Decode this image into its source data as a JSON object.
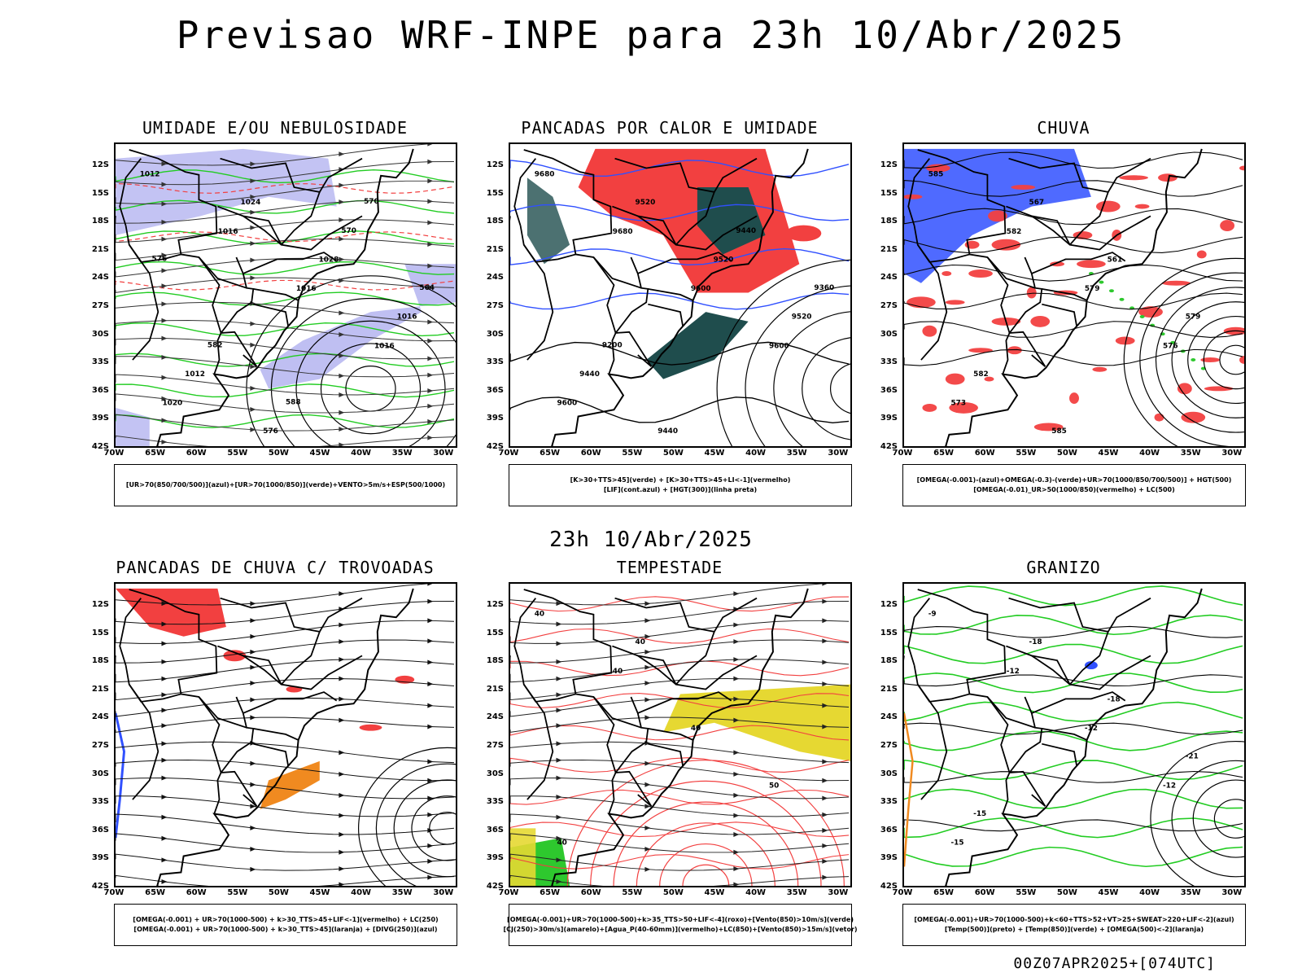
{
  "header": {
    "title": "Previsao WRF-INPE  para 23h 10/Abr/2025",
    "mid_title": "23h 10/Abr/2025",
    "footer_stamp": "00Z07APR2025+[074UTC]"
  },
  "axes": {
    "lat_labels": [
      "12S",
      "15S",
      "18S",
      "21S",
      "24S",
      "27S",
      "30S",
      "33S",
      "36S",
      "39S",
      "42S"
    ],
    "lon_labels": [
      "70W",
      "65W",
      "60W",
      "55W",
      "50W",
      "45W",
      "40W",
      "35W",
      "30W"
    ]
  },
  "panels": [
    {
      "id": "umidade",
      "title": "UMIDADE E/OU NEBULOSIDADE",
      "legend": [
        "[UR>70(850/700/500)](azul)+[UR>70(1000/850)](verde)+VENTO>5m/s+ESP(500/1000)"
      ],
      "labels": [
        "1012",
        "1016",
        "1016",
        "1016",
        "1020",
        "1024",
        "1028",
        "1016",
        "1012",
        "576",
        "570",
        "564",
        "582",
        "588",
        "570",
        "576"
      ]
    },
    {
      "id": "pancadas-calor",
      "title": "PANCADAS POR CALOR E UMIDADE",
      "legend": [
        "[K>30+TTS>45](verde) + [K>30+TTS>45+LI<-1](vermelho)",
        "[LIF](cont.azul) + [HGT(300)](linha preta)"
      ],
      "labels": [
        "9680",
        "9680",
        "9600",
        "9600",
        "9600",
        "9520",
        "9520",
        "9520",
        "9440",
        "9440",
        "9440",
        "9360",
        "9200"
      ]
    },
    {
      "id": "chuva",
      "title": "CHUVA",
      "legend": [
        "[OMEGA(-0.001)-(azul)+OMEGA(-0.3)-(verde)+UR>70(1000/850/700/500)] + HGT(500)",
        "[OMEGA(-0.01)_UR>50(1000/850)(vermelho) + LC(500)"
      ],
      "labels": [
        "585",
        "582",
        "579",
        "576",
        "573",
        "567",
        "561",
        "579",
        "582",
        "585"
      ]
    },
    {
      "id": "trovoadas",
      "title": "PANCADAS DE CHUVA C/ TROVOADAS",
      "legend": [
        "[OMEGA(-0.001) + UR>70(1000-500) + k>30_TTS>45+LIF<-1](vermelho) + LC(250)",
        "[OMEGA(-0.001) + UR>70(1000-500) + k>30_TTS>45](laranja) + [DIVG(250)](azul)"
      ],
      "labels": []
    },
    {
      "id": "tempestade",
      "title": "TEMPESTADE",
      "legend": [
        "[OMEGA(-0.001)+UR>70(1000-500)+k>35_TTS>50+LIF<-4](roxo)+[Vento(850)>10m/s](verde)",
        "[CJ(250)>30m/s](amarelo)+[Agua_P(40-60mm)](vermelho)+LC(850)+[Vento(850)>15m/s](vetor)"
      ],
      "labels": [
        "40",
        "40",
        "40",
        "50",
        "40",
        "40"
      ]
    },
    {
      "id": "granizo",
      "title": "GRANIZO",
      "legend": [
        "[OMEGA(-0.001)+UR>70(1000-500)+k<60+TTS>52+VT>25+SWEAT>220+LIF<-2](azul)",
        "[Temp(500)](preto) + [Temp(850)](verde) + [OMEGA(500)<-2](laranja)"
      ],
      "labels": [
        "-9",
        "-12",
        "-12",
        "-12",
        "-15",
        "-18",
        "-18",
        "-21",
        "-15"
      ]
    }
  ],
  "colors": {
    "blue_shade": "#b4b4f0",
    "green_contour": "#22cc22",
    "red_shade": "#f24040",
    "dark_teal": "#1f4d4d",
    "blue_contour": "#3050ff",
    "orange": "#f08a20",
    "yellow": "#e6d832",
    "green_shade": "#2ec82e",
    "coastline": "#000000"
  }
}
